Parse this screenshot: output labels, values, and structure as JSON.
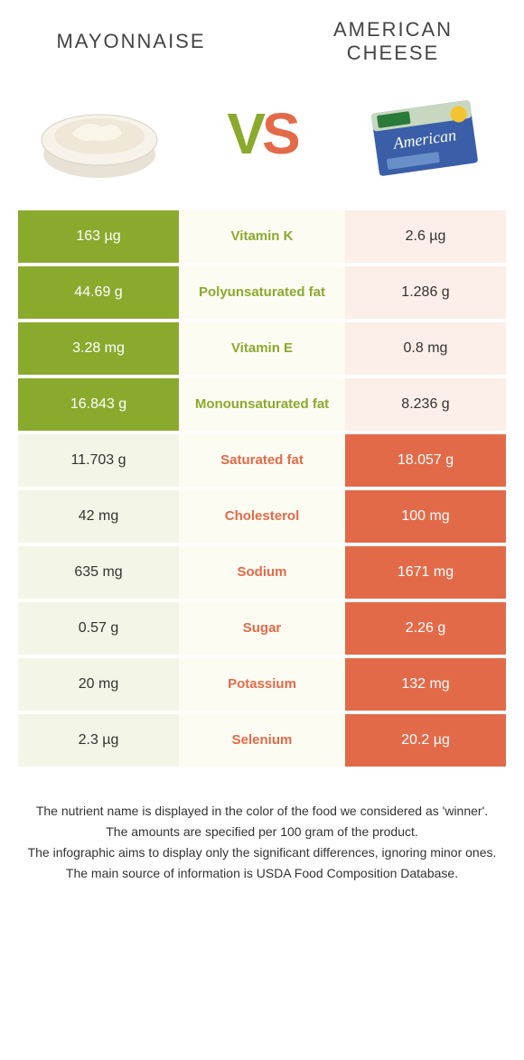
{
  "colors": {
    "green": "#8aaa2e",
    "orange": "#e36a49",
    "lightgreen": "#f3f6e6",
    "lightorange": "#fceee9",
    "cream": "#fdfcf3"
  },
  "header": {
    "left_title": "Mayonnaise",
    "right_title_line1": "American",
    "right_title_line2": "Cheese",
    "vs_v": "V",
    "vs_s": "S"
  },
  "rows": [
    {
      "left": "163 µg",
      "label": "Vitamin K",
      "right": "2.6 µg",
      "winner": "left"
    },
    {
      "left": "44.69 g",
      "label": "Polyunsaturated fat",
      "right": "1.286 g",
      "winner": "left"
    },
    {
      "left": "3.28 mg",
      "label": "Vitamin E",
      "right": "0.8 mg",
      "winner": "left"
    },
    {
      "left": "16.843 g",
      "label": "Monounsaturated fat",
      "right": "8.236 g",
      "winner": "left"
    },
    {
      "left": "11.703 g",
      "label": "Saturated fat",
      "right": "18.057 g",
      "winner": "right"
    },
    {
      "left": "42 mg",
      "label": "Cholesterol",
      "right": "100 mg",
      "winner": "right"
    },
    {
      "left": "635 mg",
      "label": "Sodium",
      "right": "1671 mg",
      "winner": "right"
    },
    {
      "left": "0.57 g",
      "label": "Sugar",
      "right": "2.26 g",
      "winner": "right"
    },
    {
      "left": "20 mg",
      "label": "Potassium",
      "right": "132 mg",
      "winner": "right"
    },
    {
      "left": "2.3 µg",
      "label": "Selenium",
      "right": "20.2 µg",
      "winner": "right"
    }
  ],
  "footnotes": [
    "The nutrient name is displayed in the color of the food we considered as 'winner'.",
    "The amounts are specified per 100 gram of the product.",
    "The infographic aims to display only the significant differences, ignoring minor ones.",
    "The main source of information is USDA Food Composition Database."
  ]
}
